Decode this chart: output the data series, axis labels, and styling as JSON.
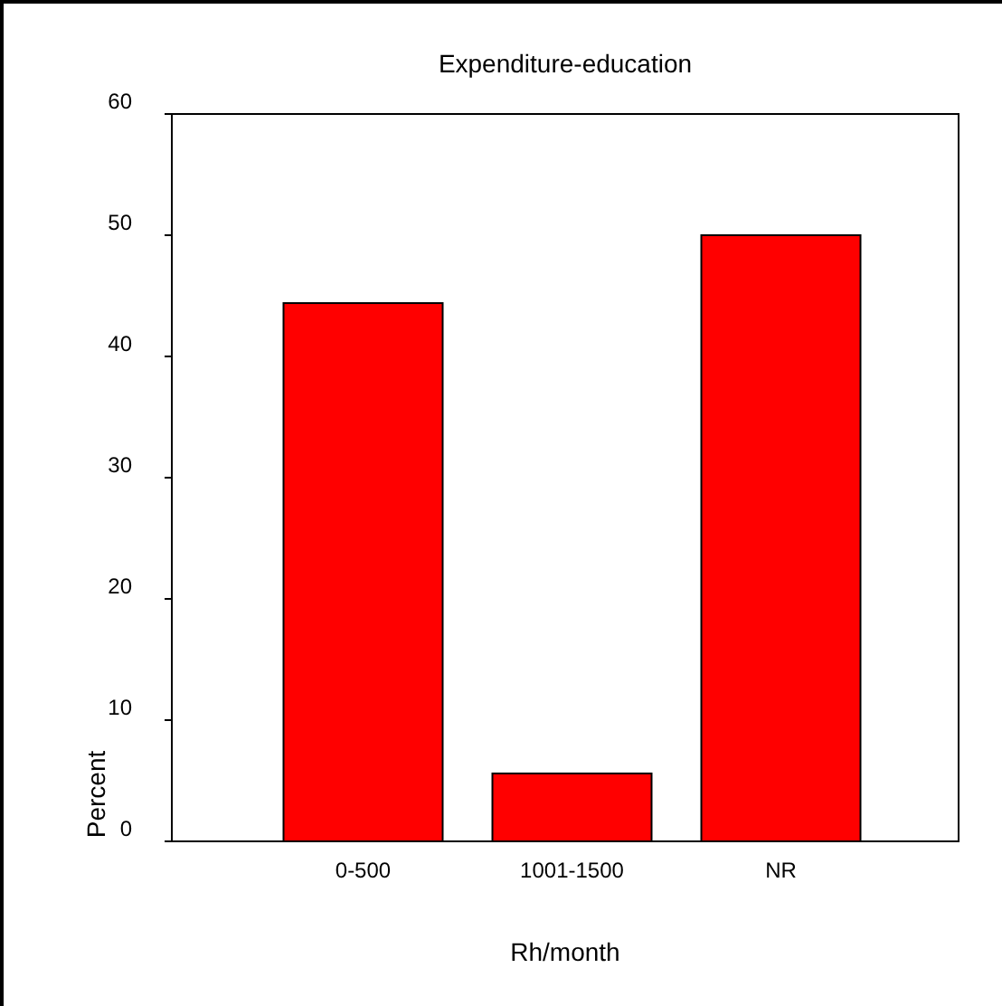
{
  "chart_data": {
    "type": "bar",
    "title": "Expenditure-education",
    "xlabel": "Rh/month",
    "ylabel": "Percent",
    "categories": [
      "0-500",
      "1001-1500",
      "NR"
    ],
    "values": [
      44.4,
      5.6,
      50.0
    ],
    "color": "#ff0000",
    "ylim": [
      0,
      60
    ],
    "yticks": [
      0,
      10,
      20,
      30,
      40,
      50,
      60
    ],
    "grid": false
  }
}
